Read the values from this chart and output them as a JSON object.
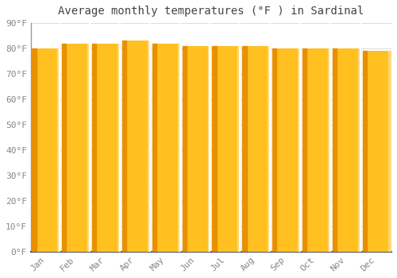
{
  "title": "Average monthly temperatures (°F ) in Sardinal",
  "categories": [
    "Jan",
    "Feb",
    "Mar",
    "Apr",
    "May",
    "Jun",
    "Jul",
    "Aug",
    "Sep",
    "Oct",
    "Nov",
    "Dec"
  ],
  "values": [
    80,
    82,
    82,
    83,
    82,
    81,
    81,
    81,
    80,
    80,
    80,
    79
  ],
  "bar_color_main": "#FFC020",
  "bar_color_edge_left": "#E89000",
  "bar_color_highlight": "#FFD878",
  "background_color": "#FFFFFF",
  "plot_bg_color": "#FFFFFF",
  "ylim": [
    0,
    90
  ],
  "ytick_step": 10,
  "title_fontsize": 10,
  "tick_fontsize": 8,
  "grid_color": "#DDDDDD",
  "axis_label_color": "#888888",
  "title_color": "#444444",
  "bar_width": 0.92
}
